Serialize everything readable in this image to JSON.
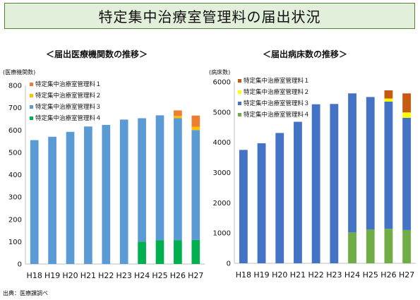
{
  "page_title": "特定集中治療室管理料の届出状況",
  "source": "出典：医療課調べ",
  "colors": {
    "title_bg": "#e2efda",
    "title_border": "#548235"
  },
  "chart_data": [
    {
      "type": "bar",
      "stacked": true,
      "title": "＜届出医療機関数の推移＞",
      "ylabel": "(医療機関数)",
      "categories": [
        "H18",
        "H19",
        "H20",
        "H21",
        "H22",
        "H23",
        "H24",
        "H25",
        "H26",
        "H27"
      ],
      "ylim": [
        0,
        800
      ],
      "yticks": [
        0,
        100,
        200,
        300,
        400,
        500,
        600,
        700,
        800
      ],
      "legend_position": "top-left",
      "series": [
        {
          "name": "特定集中治療室管理料１",
          "color": "#ed7d31",
          "values": [
            0,
            0,
            0,
            0,
            0,
            0,
            0,
            0,
            25,
            50
          ]
        },
        {
          "name": "特定集中治療室管理料２",
          "color": "#ffc000",
          "values": [
            0,
            0,
            0,
            0,
            0,
            0,
            0,
            0,
            10,
            15
          ]
        },
        {
          "name": "特定集中治療室管理料３",
          "color": "#5b9bd5",
          "values": [
            555,
            570,
            592,
            616,
            623,
            647,
            553,
            559,
            546,
            492
          ]
        },
        {
          "name": "特定集中治療室管理料４",
          "color": "#00b050",
          "values": [
            0,
            0,
            0,
            0,
            0,
            0,
            100,
            107,
            107,
            108
          ]
        }
      ]
    },
    {
      "type": "bar",
      "stacked": true,
      "title": "＜届出病床数の推移＞",
      "ylabel": "(病床数)",
      "categories": [
        "H18",
        "H19",
        "H20",
        "H21",
        "H22",
        "H23",
        "H24",
        "H25",
        "H26",
        "H27"
      ],
      "ylim": [
        0,
        6000
      ],
      "yticks": [
        0,
        1000,
        2000,
        3000,
        4000,
        5000,
        6000
      ],
      "legend_position": "top-left",
      "series": [
        {
          "name": "特定集中治療室管理料１",
          "color": "#c55a11",
          "values": [
            0,
            0,
            0,
            0,
            0,
            0,
            0,
            0,
            270,
            630
          ]
        },
        {
          "name": "特定集中治療室管理料２",
          "color": "#ffff00",
          "values": [
            0,
            0,
            0,
            0,
            0,
            0,
            0,
            0,
            100,
            180
          ]
        },
        {
          "name": "特定集中治療室管理料３",
          "color": "#4472c4",
          "values": [
            3750,
            3970,
            4310,
            4680,
            5260,
            5270,
            4600,
            4380,
            4210,
            3710
          ]
        },
        {
          "name": "特定集中治療室管理料４",
          "color": "#70ad47",
          "values": [
            0,
            0,
            0,
            0,
            0,
            0,
            1020,
            1120,
            1140,
            1100
          ]
        }
      ]
    }
  ]
}
